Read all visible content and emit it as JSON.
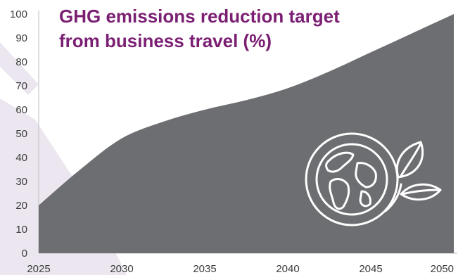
{
  "chart_data": {
    "type": "area",
    "title": "GHG emissions reduction target from business travel (%)",
    "xlabel": "",
    "ylabel": "",
    "x": [
      2025,
      2027.5,
      2030,
      2032.5,
      2035,
      2037.5,
      2040,
      2042.5,
      2045,
      2047.5,
      2050
    ],
    "series": [
      {
        "values": [
          20,
          35,
          48,
          55,
          60,
          64,
          69,
          76,
          84,
          92,
          100
        ]
      }
    ],
    "xlim": [
      2025,
      2050
    ],
    "ylim": [
      0,
      100
    ],
    "xticks": [
      "2025",
      "2030",
      "2035",
      "2040",
      "2045",
      "2050"
    ],
    "yticks": [
      "0",
      "10",
      "20",
      "30",
      "40",
      "50",
      "60",
      "70",
      "80",
      "90",
      "100"
    ],
    "grid": false,
    "legend": "none"
  },
  "colors": {
    "area": "#6d6e71",
    "title": "#7b1f73",
    "background_shape": "#ebe6ef",
    "axis_text": "#3c3c3c",
    "icon_stroke": "#ffffff"
  },
  "icons": [
    "globe-leaf-icon"
  ]
}
